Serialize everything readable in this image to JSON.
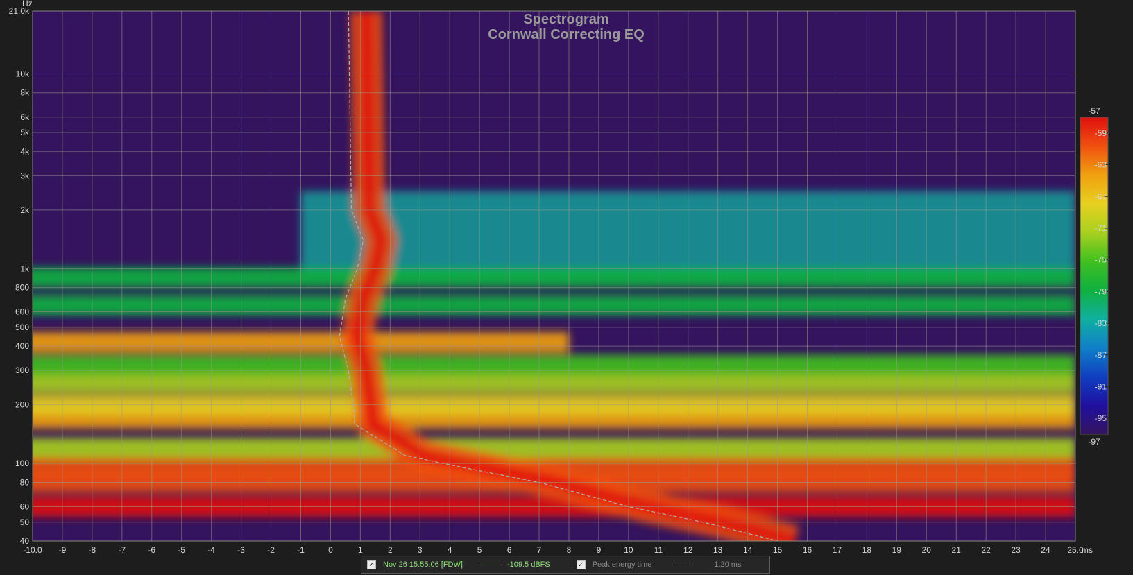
{
  "chart_data": {
    "type": "heatmap",
    "title": "Spectrogram",
    "subtitle": "Cornwall Correcting EQ",
    "x_unit": "ms",
    "y_unit": "Hz",
    "xlim": [
      -10,
      25
    ],
    "ylim": [
      40,
      21000
    ],
    "y_scale": "log",
    "x_ticks": [
      "-10.0",
      "-9",
      "-8",
      "-7",
      "-6",
      "-5",
      "-4",
      "-3",
      "-2",
      "-1",
      "0",
      "1",
      "2",
      "3",
      "4",
      "5",
      "6",
      "7",
      "8",
      "9",
      "10",
      "11",
      "12",
      "13",
      "14",
      "15",
      "16",
      "17",
      "18",
      "19",
      "20",
      "21",
      "22",
      "23",
      "24",
      "25.0"
    ],
    "y_ticks": [
      {
        "label": "21.0k",
        "value": 21000
      },
      {
        "label": "10k",
        "value": 10000
      },
      {
        "label": "8k",
        "value": 8000
      },
      {
        "label": "6k",
        "value": 6000
      },
      {
        "label": "5k",
        "value": 5000
      },
      {
        "label": "4k",
        "value": 4000
      },
      {
        "label": "3k",
        "value": 3000
      },
      {
        "label": "2k",
        "value": 2000
      },
      {
        "label": "1k",
        "value": 1000
      },
      {
        "label": "800",
        "value": 800
      },
      {
        "label": "600",
        "value": 600
      },
      {
        "label": "500",
        "value": 500
      },
      {
        "label": "400",
        "value": 400
      },
      {
        "label": "300",
        "value": 300
      },
      {
        "label": "200",
        "value": 200
      },
      {
        "label": "100",
        "value": 100
      },
      {
        "label": "80",
        "value": 80
      },
      {
        "label": "60",
        "value": 60
      },
      {
        "label": "50",
        "value": 50
      },
      {
        "label": "40",
        "value": 40
      }
    ],
    "colorbar": {
      "unit": "dBFS",
      "range": [
        -97,
        -57
      ],
      "ticks": [
        "-57",
        "-59",
        "-63",
        "-67",
        "-71",
        "-75",
        "-79",
        "-83",
        "-87",
        "-91",
        "-95",
        "-97"
      ],
      "colors": [
        "#e01010",
        "#f05010",
        "#f0a010",
        "#e8d020",
        "#a8d020",
        "#40c020",
        "#10b040",
        "#10b0a0",
        "#1080c8",
        "#1040c0",
        "#2010a0",
        "#34145e"
      ]
    },
    "background_color": "#34145e",
    "grid": true,
    "bands": [
      {
        "f": 60,
        "level": -57,
        "t_end": 25
      },
      {
        "f": 80,
        "level": -59,
        "t_end": 25
      },
      {
        "f": 95,
        "level": -61,
        "t_end": 25
      },
      {
        "f": 120,
        "level": -71,
        "t_end": 25
      },
      {
        "f": 170,
        "level": -64,
        "t_end": 25
      },
      {
        "f": 200,
        "level": -69,
        "t_end": 25
      },
      {
        "f": 260,
        "level": -71,
        "t_end": 25
      },
      {
        "f": 320,
        "level": -75,
        "t_end": 25
      },
      {
        "f": 420,
        "level": -64,
        "t_end": 8
      },
      {
        "f": 650,
        "level": -77,
        "t_end": 25
      },
      {
        "f": 900,
        "level": -79,
        "t_end": 25
      }
    ],
    "peak_energy_curve": [
      {
        "f": 21000,
        "t": 0.6
      },
      {
        "f": 2000,
        "t": 0.7
      },
      {
        "f": 1400,
        "t": 1.1
      },
      {
        "f": 1000,
        "t": 0.9
      },
      {
        "f": 700,
        "t": 0.5
      },
      {
        "f": 450,
        "t": 0.3
      },
      {
        "f": 300,
        "t": 0.6
      },
      {
        "f": 180,
        "t": 0.8
      },
      {
        "f": 160,
        "t": 0.8
      },
      {
        "f": 140,
        "t": 1.4
      },
      {
        "f": 110,
        "t": 2.5
      },
      {
        "f": 95,
        "t": 4.5
      },
      {
        "f": 80,
        "t": 7.0
      },
      {
        "f": 60,
        "t": 10.0
      },
      {
        "f": 50,
        "t": 12.5
      },
      {
        "f": 40,
        "t": 15.0
      }
    ]
  },
  "legend": {
    "measurement_label": "Nov 26 15:55:06 [FDW]",
    "measurement_value": "-109.5 dBFS",
    "measurement_checked": "✓",
    "peak_label": "Peak energy time",
    "peak_value": "1.20 ms",
    "peak_checked": "✓",
    "measurement_color": "#8ee07a"
  }
}
